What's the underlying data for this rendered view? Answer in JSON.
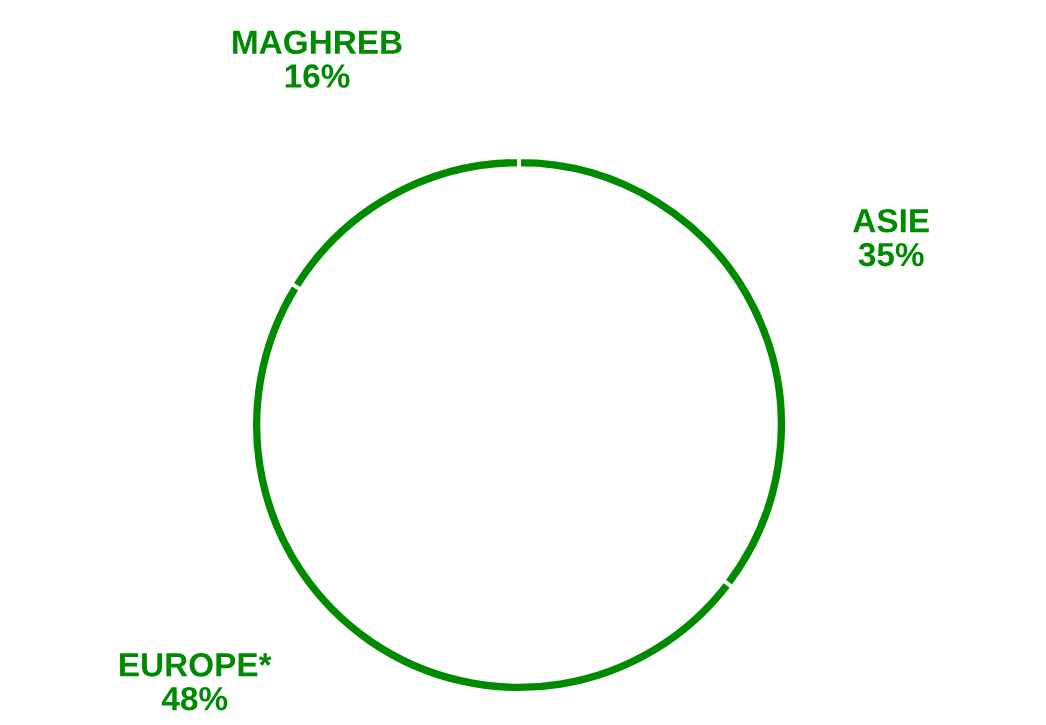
{
  "chart_data": {
    "type": "donut",
    "categories": [
      "ASIE",
      "EUROPE*",
      "MAGHREB"
    ],
    "values": [
      35,
      48,
      16
    ],
    "colors": [
      "#008a00",
      "#008a00",
      "#008a00"
    ],
    "value_labels": [
      "35%",
      "48%",
      "16%"
    ]
  }
}
